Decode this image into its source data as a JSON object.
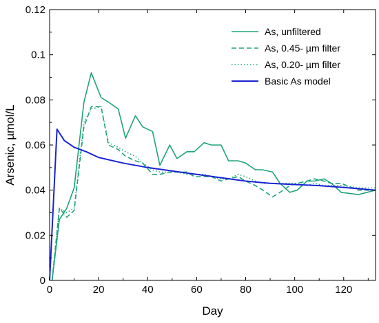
{
  "chart_data": {
    "type": "line",
    "xlabel": "Day",
    "ylabel": "Arsenic, µmol/L",
    "xlim": [
      0,
      133
    ],
    "ylim": [
      0,
      0.12
    ],
    "x_ticks": [
      0,
      20,
      40,
      60,
      80,
      100,
      120
    ],
    "x_tick_labels": [
      "0",
      "20",
      "40",
      "60",
      "80",
      "100",
      "120"
    ],
    "y_ticks": [
      0,
      0.02,
      0.04,
      0.06,
      0.08,
      0.1,
      0.12
    ],
    "y_tick_labels": [
      "0",
      "0.02",
      "0.04",
      "0.06",
      "0.08",
      "0.1",
      "0.12"
    ],
    "grid": false,
    "legend_position": "top-right",
    "series": [
      {
        "name": "As, unfiltered",
        "color": "#1fa37a",
        "dash": "solid",
        "points": [
          [
            1,
            0
          ],
          [
            4,
            0.027
          ],
          [
            7,
            0.032
          ],
          [
            10,
            0.041
          ],
          [
            14,
            0.079
          ],
          [
            17,
            0.092
          ],
          [
            21,
            0.081
          ],
          [
            24,
            0.079
          ],
          [
            28,
            0.076
          ],
          [
            31,
            0.063
          ],
          [
            35,
            0.073
          ],
          [
            38,
            0.068
          ],
          [
            42,
            0.066
          ],
          [
            45,
            0.051
          ],
          [
            49,
            0.06
          ],
          [
            52,
            0.054
          ],
          [
            56,
            0.057
          ],
          [
            59,
            0.057
          ],
          [
            63,
            0.061
          ],
          [
            66,
            0.06
          ],
          [
            70,
            0.06
          ],
          [
            73,
            0.053
          ],
          [
            77,
            0.053
          ],
          [
            80,
            0.052
          ],
          [
            84,
            0.049
          ],
          [
            87,
            0.049
          ],
          [
            91,
            0.048
          ],
          [
            94,
            0.043
          ],
          [
            98,
            0.039
          ],
          [
            101,
            0.04
          ],
          [
            105,
            0.044
          ],
          [
            108,
            0.044
          ],
          [
            112,
            0.045
          ],
          [
            115,
            0.043
          ],
          [
            119,
            0.039
          ],
          [
            126,
            0.038
          ],
          [
            133,
            0.04
          ]
        ]
      },
      {
        "name": "As, 0.45- µm filter",
        "color": "#1fa37a",
        "dash": "dashed",
        "points": [
          [
            1,
            0
          ],
          [
            4,
            0.032
          ],
          [
            7,
            0.028
          ],
          [
            10,
            0.031
          ],
          [
            14,
            0.068
          ],
          [
            17,
            0.077
          ],
          [
            21,
            0.077
          ],
          [
            24,
            0.06
          ],
          [
            28,
            0.058
          ],
          [
            31,
            0.055
          ],
          [
            35,
            0.053
          ],
          [
            38,
            0.052
          ],
          [
            42,
            0.047
          ],
          [
            45,
            0.047
          ],
          [
            49,
            0.048
          ],
          [
            52,
            0.048
          ],
          [
            56,
            0.048
          ],
          [
            59,
            0.046
          ],
          [
            63,
            0.046
          ],
          [
            66,
            0.046
          ],
          [
            70,
            0.044
          ],
          [
            73,
            0.045
          ],
          [
            77,
            0.046
          ],
          [
            80,
            0.044
          ],
          [
            84,
            0.042
          ],
          [
            87,
            0.04
          ],
          [
            91,
            0.037
          ],
          [
            94,
            0.039
          ],
          [
            98,
            0.042
          ],
          [
            101,
            0.043
          ],
          [
            105,
            0.044
          ],
          [
            108,
            0.045
          ],
          [
            112,
            0.044
          ],
          [
            115,
            0.043
          ],
          [
            119,
            0.043
          ],
          [
            126,
            0.04
          ],
          [
            133,
            0.04
          ]
        ]
      },
      {
        "name": "As, 0.20- µm filter",
        "color": "#1fa37a",
        "dash": "dotted",
        "points": [
          [
            1,
            0
          ],
          [
            4,
            0.032
          ],
          [
            7,
            0.03
          ],
          [
            10,
            0.032
          ],
          [
            14,
            0.07
          ],
          [
            17,
            0.076
          ],
          [
            21,
            0.077
          ],
          [
            24,
            0.061
          ],
          [
            28,
            0.059
          ],
          [
            31,
            0.057
          ],
          [
            35,
            0.055
          ],
          [
            38,
            0.052
          ],
          [
            42,
            0.049
          ],
          [
            45,
            0.048
          ],
          [
            49,
            0.048
          ],
          [
            52,
            0.048
          ],
          [
            56,
            0.047
          ],
          [
            59,
            0.047
          ],
          [
            63,
            0.047
          ],
          [
            66,
            0.046
          ],
          [
            70,
            0.045
          ],
          [
            73,
            0.045
          ],
          [
            77,
            0.047
          ],
          [
            80,
            0.046
          ],
          [
            84,
            0.044
          ],
          [
            87,
            0.043
          ],
          [
            91,
            0.043
          ],
          [
            94,
            0.043
          ],
          [
            98,
            0.043
          ],
          [
            101,
            0.043
          ],
          [
            105,
            0.042
          ],
          [
            108,
            0.043
          ],
          [
            112,
            0.042
          ],
          [
            115,
            0.042
          ],
          [
            119,
            0.042
          ],
          [
            126,
            0.041
          ],
          [
            133,
            0.041
          ]
        ]
      },
      {
        "name": "Basic As model",
        "color": "#1a22d6",
        "dash": "solid",
        "points": [
          [
            0,
            0
          ],
          [
            3,
            0.067
          ],
          [
            6,
            0.062
          ],
          [
            10,
            0.059
          ],
          [
            15,
            0.057
          ],
          [
            20,
            0.0545
          ],
          [
            30,
            0.052
          ],
          [
            40,
            0.05
          ],
          [
            50,
            0.0485
          ],
          [
            60,
            0.047
          ],
          [
            70,
            0.0455
          ],
          [
            80,
            0.044
          ],
          [
            90,
            0.043
          ],
          [
            100,
            0.0425
          ],
          [
            110,
            0.042
          ],
          [
            120,
            0.0412
          ],
          [
            133,
            0.04
          ]
        ]
      }
    ]
  }
}
